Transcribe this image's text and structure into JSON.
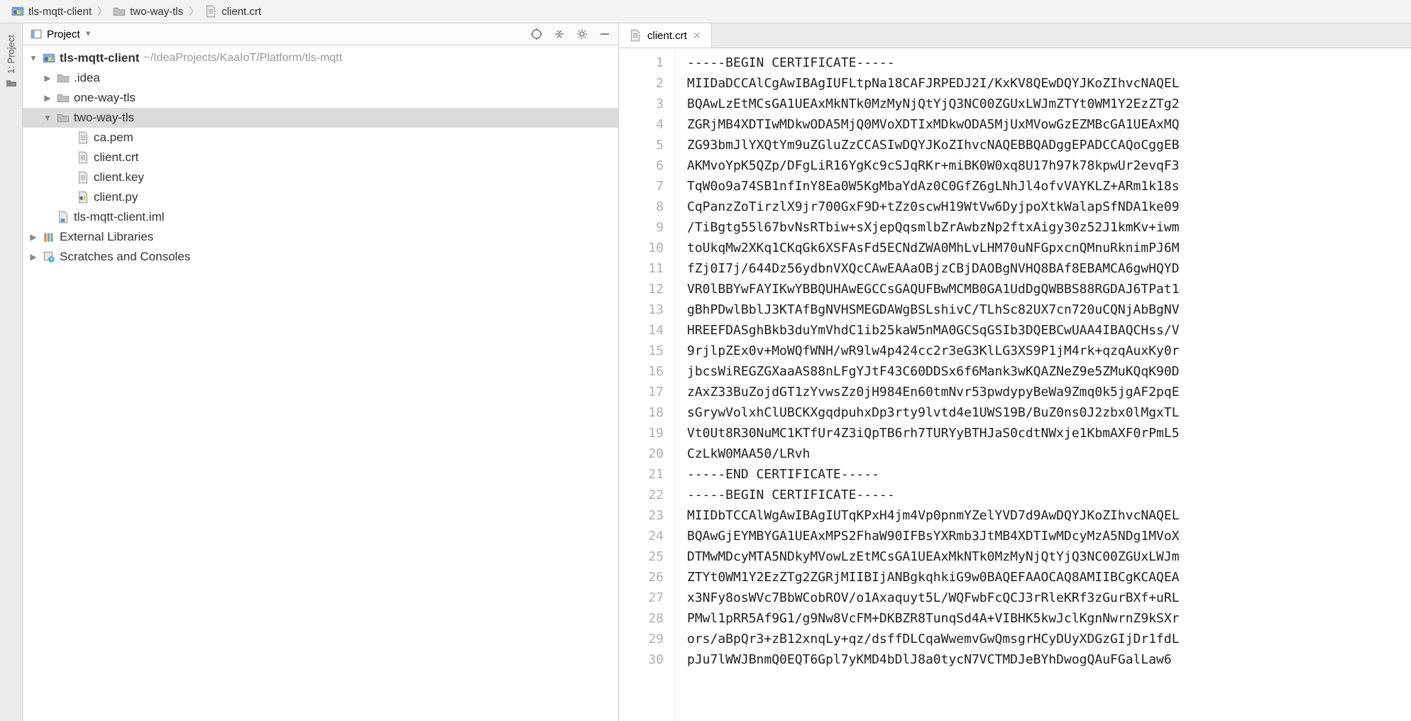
{
  "breadcrumb": [
    {
      "icon": "python-folder",
      "label": "tls-mqtt-client"
    },
    {
      "icon": "folder",
      "label": "two-way-tls"
    },
    {
      "icon": "file",
      "label": "client.crt"
    }
  ],
  "left_strip": {
    "label": "1: Project"
  },
  "sidebar": {
    "title": "Project",
    "toolbar": [
      "target",
      "collapse",
      "gear",
      "minimize"
    ]
  },
  "tree": {
    "root": {
      "name": "tls-mqtt-client",
      "path": "~/IdeaProjects/KaaIoT/Platform/tls-mqtt"
    },
    "items": [
      {
        "indent": 1,
        "arrow": "right",
        "icon": "folder",
        "label": ".idea"
      },
      {
        "indent": 1,
        "arrow": "right",
        "icon": "folder",
        "label": "one-way-tls"
      },
      {
        "indent": 1,
        "arrow": "down",
        "icon": "folder",
        "label": "two-way-tls",
        "selected": true
      },
      {
        "indent": 2,
        "arrow": "",
        "icon": "file",
        "label": "ca.pem"
      },
      {
        "indent": 2,
        "arrow": "",
        "icon": "file",
        "label": "client.crt"
      },
      {
        "indent": 2,
        "arrow": "",
        "icon": "file",
        "label": "client.key"
      },
      {
        "indent": 2,
        "arrow": "",
        "icon": "python-file",
        "label": "client.py"
      },
      {
        "indent": 1,
        "arrow": "",
        "icon": "iml-file",
        "label": "tls-mqtt-client.iml"
      }
    ],
    "external": {
      "label": "External Libraries"
    },
    "scratches": {
      "label": "Scratches and Consoles"
    }
  },
  "tabs": [
    {
      "icon": "file",
      "label": "client.crt"
    }
  ],
  "editor": {
    "lines": [
      "-----BEGIN CERTIFICATE-----",
      "MIIDaDCCAlCgAwIBAgIUFLtpNa18CAFJRPEDJ2I/KxKV8QEwDQYJKoZIhvcNAQEL",
      "BQAwLzEtMCsGA1UEAxMkNTk0MzMyNjQtYjQ3NC00ZGUxLWJmZTYt0WM1Y2EzZTg2",
      "ZGRjMB4XDTIwMDkwODA5MjQ0MVoXDTIxMDkwODA5MjUxMVowGzEZMBcGA1UEAxMQ",
      "ZG93bmJlYXQtYm9uZGluZzCCASIwDQYJKoZIhvcNAQEBBQADggEPADCCAQoCggEB",
      "AKMvoYpK5QZp/DFgLiR16YgKc9cSJqRKr+miBK0W0xq8U17h97k78kpwUr2evqF3",
      "TqW0o9a74SB1nfInY8Ea0W5KgMbaYdAz0C0GfZ6gLNhJl4ofvVAYKLZ+ARm1k18s",
      "CqPanzZoTirzlX9jr700GxF9D+tZz0scwH19WtVw6DyjpoXtkWalapSfNDA1ke09",
      "/TiBgtg55l67bvNsRTbiw+sXjepQqsmlbZrAwbzNp2ftxAigy30z52J1kmKv+iwm",
      "toUkqMw2XKq1CKqGk6XSFAsFd5ECNdZWA0MhLvLHM70uNFGpxcnQMnuRknimPJ6M",
      "fZj0I7j/644Dz56ydbnVXQcCAwEAAaOBjzCBjDAOBgNVHQ8BAf8EBAMCA6gwHQYD",
      "VR0lBBYwFAYIKwYBBQUHAwEGCCsGAQUFBwMCMB0GA1UdDgQWBBS88RGDAJ6TPat1",
      "gBhPDwlBblJ3KTAfBgNVHSMEGDAWgBSLshivC/TLhSc82UX7cn720uCQNjAbBgNV",
      "HREEFDASghBkb3duYmVhdC1ib25kaW5nMA0GCSqGSIb3DQEBCwUAA4IBAQCHss/V",
      "9rjlpZEx0v+MoWQfWNH/wR9lw4p424cc2r3eG3KlLG3XS9P1jM4rk+qzqAuxKy0r",
      "jbcsWiREGZGXaaAS88nLFgYJtF43C60DDSx6f6Mank3wKQAZNeZ9e5ZMuKQqK90D",
      "zAxZ33BuZojdGT1zYvwsZz0jH984En60tmNvr53pwdypyBeWa9Zmq0k5jgAF2pqE",
      "sGrywVolxhClUBCKXgqdpuhxDp3rty9lvtd4e1UWS19B/BuZ0ns0J2zbx0lMgxTL",
      "Vt0Ut8R30NuMC1KTfUr4Z3iQpTB6rh7TURYyBTHJaS0cdtNWxje1KbmAXF0rPmL5",
      "CzLkW0MAA50/LRvh",
      "-----END CERTIFICATE-----",
      "-----BEGIN CERTIFICATE-----",
      "MIIDbTCCAlWgAwIBAgIUTqKPxH4jm4Vp0pnmYZelYVD7d9AwDQYJKoZIhvcNAQEL",
      "BQAwGjEYMBYGA1UEAxMPS2FhaW90IFBsYXRmb3JtMB4XDTIwMDcyMzA5NDg1MVoX",
      "DTMwMDcyMTA5NDkyMVowLzEtMCsGA1UEAxMkNTk0MzMyNjQtYjQ3NC00ZGUxLWJm",
      "ZTYt0WM1Y2EzZTg2ZGRjMIIBIjANBgkqhkiG9w0BAQEFAAOCAQ8AMIIBCgKCAQEA",
      "x3NFy8osWVc7BbWCobROV/o1Axaquyt5L/WQFwbFcQCJ3rRleKRf3zGurBXf+uRL",
      "PMwl1pRR5Af9G1/g9Nw8VcFM+DKBZR8TunqSd4A+VIBHK5kwJclKgnNwrnZ9kSXr",
      "ors/aBpQr3+zB12xnqLy+qz/dsffDLCqaWwemvGwQmsgrHCyDUyXDGzGIjDr1fdL",
      "pJu7lWWJBnmQ0EQT6Gpl7yKMD4bDlJ8a0tycN7VCTMDJeBYhDwogQAuFGalLaw6"
    ]
  }
}
